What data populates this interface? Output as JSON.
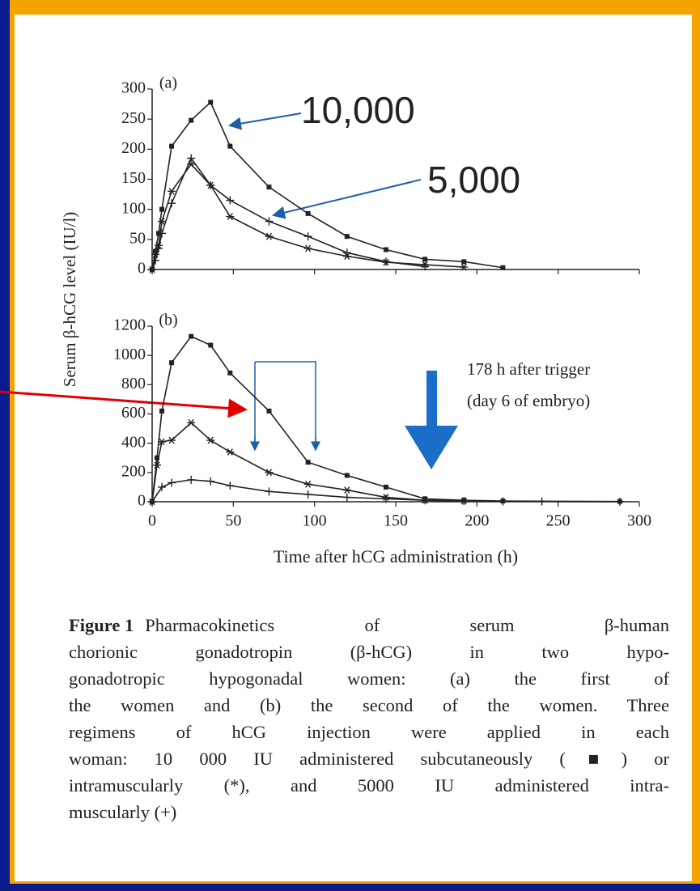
{
  "y_label": "Serum β-hCG level (IU/l)",
  "chart_data": [
    {
      "type": "line",
      "title": "(a)",
      "xlim": [
        0,
        300
      ],
      "ylim": [
        0,
        300
      ],
      "yticks": [
        0,
        50,
        100,
        150,
        200,
        250,
        300
      ],
      "series": [
        {
          "marker": "square",
          "color": "#222222",
          "x": [
            0,
            2,
            4,
            6,
            12,
            24,
            36,
            48,
            72,
            96,
            120,
            144,
            168,
            192,
            216
          ],
          "values": [
            0,
            30,
            60,
            100,
            205,
            248,
            278,
            205,
            137,
            93,
            55,
            33,
            17,
            13,
            3
          ]
        },
        {
          "marker": "star",
          "color": "#222222",
          "x": [
            0,
            2,
            4,
            6,
            12,
            24,
            36,
            48,
            72,
            96,
            120,
            144,
            168,
            192
          ],
          "values": [
            0,
            25,
            40,
            80,
            130,
            175,
            140,
            88,
            55,
            35,
            22,
            12,
            8,
            4
          ]
        },
        {
          "marker": "plus",
          "color": "#222222",
          "x": [
            0,
            2,
            4,
            6,
            12,
            24,
            36,
            48,
            72,
            96,
            120,
            144,
            168
          ],
          "values": [
            0,
            15,
            35,
            60,
            110,
            185,
            140,
            115,
            80,
            55,
            28,
            13,
            5
          ]
        }
      ],
      "annotations": [
        {
          "text": "10,000"
        },
        {
          "text": "5,000"
        }
      ]
    },
    {
      "type": "line",
      "title": "(b)",
      "xlabel": "Time after hCG administration (h)",
      "xlim": [
        0,
        300
      ],
      "xticks": [
        0,
        50,
        100,
        150,
        200,
        250,
        300
      ],
      "ylim": [
        0,
        1200
      ],
      "yticks": [
        0,
        200,
        400,
        600,
        800,
        1000,
        1200
      ],
      "series": [
        {
          "marker": "square",
          "color": "#222222",
          "x": [
            0,
            3,
            6,
            12,
            24,
            36,
            48,
            72,
            96,
            120,
            144,
            168,
            192,
            216,
            288
          ],
          "values": [
            0,
            300,
            620,
            950,
            1130,
            1070,
            880,
            620,
            270,
            180,
            100,
            20,
            10,
            5,
            2
          ]
        },
        {
          "marker": "star",
          "color": "#222222",
          "x": [
            0,
            3,
            6,
            12,
            24,
            36,
            48,
            72,
            96,
            120,
            144,
            168,
            192
          ],
          "values": [
            0,
            250,
            410,
            420,
            540,
            420,
            340,
            200,
            120,
            80,
            30,
            10,
            5
          ]
        },
        {
          "marker": "plus",
          "color": "#222222",
          "x": [
            0,
            6,
            12,
            24,
            36,
            48,
            72,
            96,
            120,
            144,
            168,
            192,
            216,
            240,
            288
          ],
          "values": [
            0,
            100,
            130,
            150,
            140,
            110,
            70,
            50,
            30,
            20,
            10,
            5,
            3,
            2,
            0
          ]
        }
      ],
      "annotations": [
        {
          "text": "178 h after trigger"
        },
        {
          "text": "(day 6 of embryo)"
        }
      ]
    }
  ],
  "caption": {
    "label": "Figure 1",
    "lines": [
      "Pharmacokinetics of serum β-human",
      "chorionic gonadotropin (β-hCG) in two hypo-",
      "gonadotropic hypogonadal women: (a) the first of",
      "the women and (b) the second of the women. Three",
      "regimens of hCG injection were applied in each",
      "woman: 10 000 IU administered subcutaneously (■) or",
      "intramuscularly (*), and 5000 IU administered intra-",
      "muscularly (+)"
    ]
  }
}
